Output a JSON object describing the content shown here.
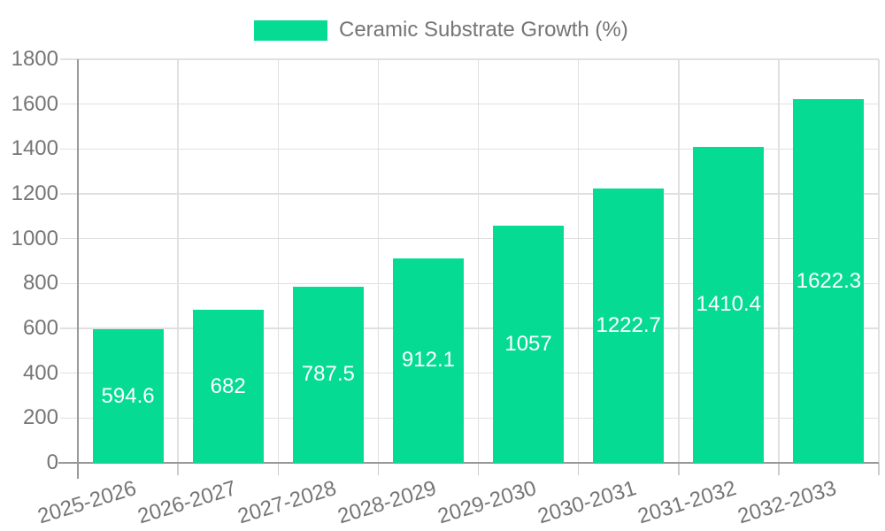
{
  "chart_data": {
    "type": "bar",
    "legend": {
      "label": "Ceramic Substrate Growth (%)",
      "position": "top"
    },
    "categories": [
      "2025-2026",
      "2026-2027",
      "2027-2028",
      "2028-2029",
      "2029-2030",
      "2030-2031",
      "2031-2032",
      "2032-2033"
    ],
    "series": [
      {
        "name": "Ceramic Substrate Growth (%)",
        "values": [
          594.6,
          682,
          787.5,
          912.1,
          1057,
          1222.7,
          1410.4,
          1622.3
        ]
      }
    ],
    "value_labels": [
      "594.6",
      "682",
      "787.5",
      "912.1",
      "1057",
      "1222.7",
      "1410.4",
      "1622.3"
    ],
    "yticks": [
      0,
      200,
      400,
      600,
      800,
      1000,
      1200,
      1400,
      1600,
      1800
    ],
    "ylim": [
      0,
      1800
    ],
    "grid": true,
    "x_label_rotation_deg": -17,
    "colors": {
      "bar": "#06db94",
      "text": "#757575",
      "grid": "#e0e0e0",
      "tick": "#cccccc",
      "axis": "#999999",
      "value_label": "#ffffff",
      "background": "#ffffff"
    }
  }
}
